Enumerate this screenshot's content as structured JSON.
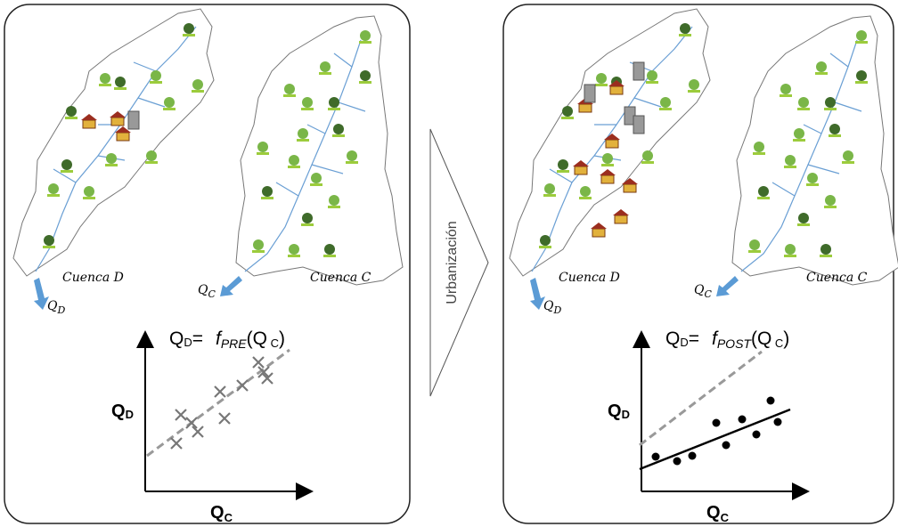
{
  "panels": [
    {
      "basin_d": "Cuenca D",
      "basin_c": "Cuenca C",
      "outlet_d": {
        "q": "Q",
        "sub": "D"
      },
      "outlet_c": {
        "q": "Q",
        "sub": "C"
      },
      "formula": {
        "lhs": "Q",
        "lhs_sub": "D",
        "eq": "=",
        "f": "f",
        "f_sub": "PRE",
        "arg": "(Q",
        "arg_sub": " C",
        "close": ")"
      },
      "y_axis": {
        "q": "Q",
        "sub": "D"
      },
      "x_axis": {
        "q": "Q",
        "sub": "C"
      }
    },
    {
      "basin_d": "Cuenca D",
      "basin_c": "Cuenca C",
      "outlet_d": {
        "q": "Q",
        "sub": "D"
      },
      "outlet_c": {
        "q": "Q",
        "sub": "C"
      },
      "formula": {
        "lhs": "Q",
        "lhs_sub": "D",
        "eq": "=",
        "f": "f",
        "f_sub": "POST",
        "arg": "(Q",
        "arg_sub": " C",
        "close": ")"
      },
      "y_axis": {
        "q": "Q",
        "sub": "D"
      },
      "x_axis": {
        "q": "Q",
        "sub": "C"
      }
    }
  ],
  "transition": "Urbanización"
}
